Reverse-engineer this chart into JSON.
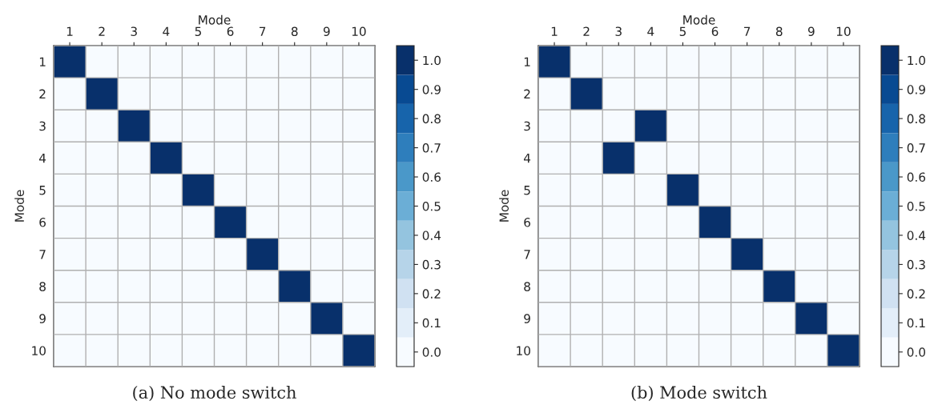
{
  "chart_data": [
    {
      "type": "heatmap",
      "title": "(a) No mode switch",
      "xlabel": "Mode",
      "ylabel": "Mode",
      "categories": [
        "1",
        "2",
        "3",
        "4",
        "5",
        "6",
        "7",
        "8",
        "9",
        "10"
      ],
      "y_categories": [
        "1",
        "2",
        "3",
        "4",
        "5",
        "6",
        "7",
        "8",
        "9",
        "10"
      ],
      "cells": [
        [
          1,
          0,
          0,
          0,
          0,
          0,
          0,
          0,
          0,
          0
        ],
        [
          0,
          1,
          0,
          0,
          0,
          0,
          0,
          0,
          0,
          0
        ],
        [
          0,
          0,
          1,
          0,
          0,
          0,
          0,
          0,
          0,
          0
        ],
        [
          0,
          0,
          0,
          1,
          0,
          0,
          0,
          0,
          0,
          0
        ],
        [
          0,
          0,
          0,
          0,
          1,
          0,
          0,
          0,
          0,
          0
        ],
        [
          0,
          0,
          0,
          0,
          0,
          1,
          0,
          0,
          0,
          0
        ],
        [
          0,
          0,
          0,
          0,
          0,
          0,
          1,
          0,
          0,
          0
        ],
        [
          0,
          0,
          0,
          0,
          0,
          0,
          0,
          1,
          0,
          0
        ],
        [
          0,
          0,
          0,
          0,
          0,
          0,
          0,
          0,
          1,
          0
        ],
        [
          0,
          0,
          0,
          0,
          0,
          0,
          0,
          0,
          0,
          1
        ]
      ],
      "clim": [
        -0.05,
        1.05
      ],
      "cticks": [
        {
          "value": 0,
          "label": "0.0"
        },
        {
          "value": 0.1,
          "label": "0.1"
        },
        {
          "value": 0.2,
          "label": "0.2"
        },
        {
          "value": 0.3,
          "label": "0.3"
        },
        {
          "value": 0.4,
          "label": "0.4"
        },
        {
          "value": 0.5,
          "label": "0.5"
        },
        {
          "value": 0.6,
          "label": "0.6"
        },
        {
          "value": 0.7,
          "label": "0.7"
        },
        {
          "value": 0.8,
          "label": "0.8"
        },
        {
          "value": 0.9,
          "label": "0.9"
        },
        {
          "value": 1,
          "label": "1.0"
        }
      ],
      "grid": true
    },
    {
      "type": "heatmap",
      "title": "(b) Mode switch",
      "xlabel": "Mode",
      "ylabel": "Mode",
      "categories": [
        "1",
        "2",
        "3",
        "4",
        "5",
        "6",
        "7",
        "8",
        "9",
        "10"
      ],
      "y_categories": [
        "1",
        "2",
        "3",
        "4",
        "5",
        "6",
        "7",
        "8",
        "9",
        "10"
      ],
      "cells": [
        [
          1,
          0,
          0,
          0,
          0,
          0,
          0,
          0,
          0,
          0
        ],
        [
          0,
          1,
          0,
          0,
          0,
          0,
          0,
          0,
          0,
          0
        ],
        [
          0,
          0,
          0,
          1,
          0,
          0,
          0,
          0,
          0,
          0
        ],
        [
          0,
          0,
          1,
          0,
          0,
          0,
          0,
          0,
          0,
          0
        ],
        [
          0,
          0,
          0,
          0,
          1,
          0,
          0,
          0,
          0,
          0
        ],
        [
          0,
          0,
          0,
          0,
          0,
          1,
          0,
          0,
          0,
          0
        ],
        [
          0,
          0,
          0,
          0,
          0,
          0,
          1,
          0,
          0,
          0
        ],
        [
          0,
          0,
          0,
          0,
          0,
          0,
          0,
          1,
          0,
          0
        ],
        [
          0,
          0,
          0,
          0,
          0,
          0,
          0,
          0,
          1,
          0
        ],
        [
          0,
          0,
          0,
          0,
          0,
          0,
          0,
          0,
          0,
          1
        ]
      ],
      "clim": [
        -0.05,
        1.05
      ],
      "cticks": [
        {
          "value": 0,
          "label": "0.0"
        },
        {
          "value": 0.1,
          "label": "0.1"
        },
        {
          "value": 0.2,
          "label": "0.2"
        },
        {
          "value": 0.3,
          "label": "0.3"
        },
        {
          "value": 0.4,
          "label": "0.4"
        },
        {
          "value": 0.5,
          "label": "0.5"
        },
        {
          "value": 0.6,
          "label": "0.6"
        },
        {
          "value": 0.7,
          "label": "0.7"
        },
        {
          "value": 0.8,
          "label": "0.8"
        },
        {
          "value": 0.9,
          "label": "0.9"
        },
        {
          "value": 1,
          "label": "1.0"
        }
      ],
      "grid": true
    }
  ]
}
